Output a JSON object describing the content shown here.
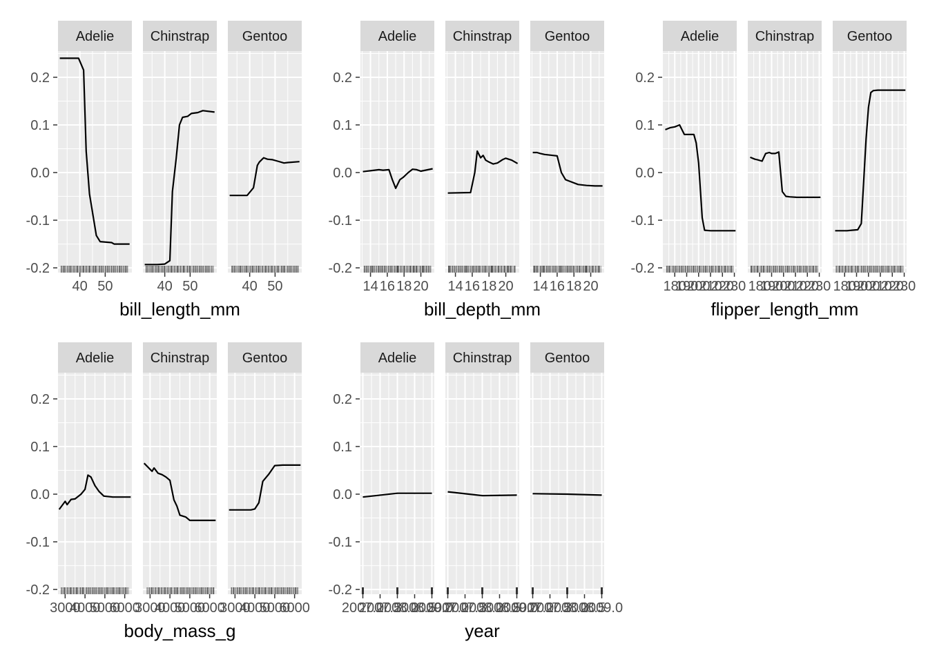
{
  "chart_data": {
    "type": "line",
    "facet_labels": [
      "Adelie",
      "Chinstrap",
      "Gentoo"
    ],
    "y_ticks": [
      -0.2,
      -0.1,
      0.0,
      0.1,
      0.2
    ],
    "y_tick_labels": [
      "-0.2",
      "-0.1",
      "0.0",
      "0.1",
      "0.2"
    ],
    "ylim": [
      -0.21,
      0.255
    ],
    "grid": true,
    "rug": true,
    "colors": {
      "panel": "#ebebeb",
      "grid": "#ffffff",
      "strip": "#d9d9d9",
      "line": "#000000",
      "rug": "#333333"
    },
    "plots": [
      {
        "xlabel": "bill_length_mm",
        "xlim": [
          31.4,
          60.5
        ],
        "x_ticks": [
          40,
          50
        ],
        "x_tick_labels": [
          "40",
          "50"
        ],
        "rug_density": 55,
        "series": [
          {
            "x": [
              32.1,
              39.5,
              41.5,
              42.5,
              43.8,
              46.5,
              48.0,
              52.5,
              53.5,
              59.6
            ],
            "y": [
              0.24,
              0.24,
              0.215,
              0.045,
              -0.045,
              -0.132,
              -0.145,
              -0.147,
              -0.15,
              -0.15
            ]
          },
          {
            "x": [
              32.1,
              37.0,
              40.0,
              42.0,
              43.0,
              44.5,
              45.8,
              47.0,
              49.0,
              50.5,
              53.0,
              55.0,
              59.6
            ],
            "y": [
              -0.193,
              -0.193,
              -0.192,
              -0.185,
              -0.04,
              0.03,
              0.1,
              0.116,
              0.118,
              0.124,
              0.126,
              0.13,
              0.127
            ]
          },
          {
            "x": [
              32.1,
              39.0,
              41.5,
              43.0,
              43.8,
              45.5,
              47.0,
              49.0,
              51.0,
              53.5,
              55.0,
              59.6
            ],
            "y": [
              -0.048,
              -0.048,
              -0.032,
              0.015,
              0.022,
              0.031,
              0.028,
              0.027,
              0.024,
              0.02,
              0.021,
              0.023
            ]
          }
        ]
      },
      {
        "xlabel": "bill_depth_mm",
        "xlim": [
          12.8,
          21.6
        ],
        "x_ticks": [
          14,
          16,
          18,
          20
        ],
        "x_tick_labels": [
          "14",
          "16",
          "18",
          "20"
        ],
        "rug_density": 60,
        "series": [
          {
            "x": [
              13.1,
              14.5,
              15.0,
              15.5,
              16.2,
              16.6,
              17.0,
              17.5,
              17.9,
              18.5,
              19.0,
              19.5,
              20.0,
              21.4
            ],
            "y": [
              0.002,
              0.005,
              0.006,
              0.005,
              0.006,
              -0.015,
              -0.033,
              -0.015,
              -0.01,
              0.0,
              0.007,
              0.006,
              0.003,
              0.008
            ]
          },
          {
            "x": [
              13.1,
              15.8,
              16.3,
              16.6,
              17.0,
              17.3,
              17.6,
              18.0,
              18.5,
              19.0,
              19.6,
              20.0,
              20.7,
              21.4
            ],
            "y": [
              -0.043,
              -0.042,
              0.0,
              0.045,
              0.031,
              0.036,
              0.026,
              0.022,
              0.018,
              0.02,
              0.027,
              0.03,
              0.026,
              0.019
            ]
          },
          {
            "x": [
              13.1,
              13.6,
              14.0,
              14.5,
              15.5,
              16.0,
              16.5,
              17.0,
              18.5,
              19.5,
              20.5,
              21.4
            ],
            "y": [
              0.042,
              0.042,
              0.04,
              0.038,
              0.036,
              0.035,
              0.0,
              -0.015,
              -0.025,
              -0.027,
              -0.028,
              -0.028
            ]
          }
        ]
      },
      {
        "xlabel": "flipper_length_mm",
        "xlim": [
          170,
          232
        ],
        "x_ticks": [
          180,
          190,
          200,
          210,
          220,
          230
        ],
        "x_tick_labels": [
          "180",
          "190",
          "200",
          "210",
          "220",
          "230"
        ],
        "rug_density": 55,
        "series": [
          {
            "x": [
              172,
              176,
              180,
              184,
              188,
              192,
              196,
              198,
              200,
              203,
              205,
              210,
              231
            ],
            "y": [
              0.09,
              0.094,
              0.096,
              0.1,
              0.08,
              0.08,
              0.08,
              0.062,
              0.02,
              -0.095,
              -0.121,
              -0.122,
              -0.122
            ]
          },
          {
            "x": [
              172,
              176,
              178,
              182,
              185,
              188,
              190,
              193,
              196,
              199,
              202,
              205,
              211,
              231
            ],
            "y": [
              0.032,
              0.028,
              0.027,
              0.024,
              0.04,
              0.042,
              0.04,
              0.04,
              0.043,
              -0.04,
              -0.05,
              -0.051,
              -0.052,
              -0.052
            ]
          },
          {
            "x": [
              172,
              178,
              182,
              186,
              191,
              194,
              198,
              200,
              202,
              204,
              208,
              231
            ],
            "y": [
              -0.122,
              -0.122,
              -0.122,
              -0.121,
              -0.12,
              -0.107,
              0.07,
              0.137,
              0.168,
              0.172,
              0.173,
              0.173
            ]
          }
        ]
      },
      {
        "xlabel": "body_mass_g",
        "xlim": [
          2640,
          6360
        ],
        "x_ticks": [
          3000,
          4000,
          5000,
          6000
        ],
        "x_tick_labels": [
          "3000",
          "4000",
          "5000",
          "6000"
        ],
        "rug_density": 55,
        "series": [
          {
            "x": [
              2700,
              3000,
              3100,
              3300,
              3500,
              3800,
              4000,
              4150,
              4300,
              4500,
              4700,
              4950,
              5400,
              6300
            ],
            "y": [
              -0.032,
              -0.015,
              -0.022,
              -0.011,
              -0.01,
              0.0,
              0.01,
              0.04,
              0.036,
              0.018,
              0.006,
              -0.004,
              -0.006,
              -0.006
            ]
          },
          {
            "x": [
              2700,
              3100,
              3200,
              3400,
              3600,
              3800,
              4000,
              4200,
              4350,
              4500,
              4800,
              5000,
              6300
            ],
            "y": [
              0.065,
              0.048,
              0.055,
              0.044,
              0.041,
              0.036,
              0.029,
              -0.012,
              -0.025,
              -0.044,
              -0.048,
              -0.055,
              -0.055
            ]
          },
          {
            "x": [
              2700,
              3500,
              3800,
              4000,
              4200,
              4400,
              4700,
              5000,
              5400,
              6300
            ],
            "y": [
              -0.033,
              -0.033,
              -0.033,
              -0.031,
              -0.018,
              0.027,
              0.042,
              0.06,
              0.061,
              0.061
            ]
          }
        ]
      },
      {
        "xlabel": "year",
        "xlim": [
          2006.93,
          2009.07
        ],
        "x_ticks": [
          2007.0,
          2007.5,
          2008.0,
          2008.5,
          2009.0
        ],
        "x_tick_labels": [
          "2007.0",
          "2007.5",
          "2008.0",
          "2008.5",
          "2009.0"
        ],
        "rug_density": 3,
        "series": [
          {
            "x": [
              2007.0,
              2008.0,
              2009.0
            ],
            "y": [
              -0.006,
              0.002,
              0.002
            ]
          },
          {
            "x": [
              2007.0,
              2008.0,
              2009.0
            ],
            "y": [
              0.005,
              -0.003,
              -0.002
            ]
          },
          {
            "x": [
              2007.0,
              2008.0,
              2009.0
            ],
            "y": [
              0.001,
              0.0,
              -0.002
            ]
          }
        ]
      }
    ]
  }
}
